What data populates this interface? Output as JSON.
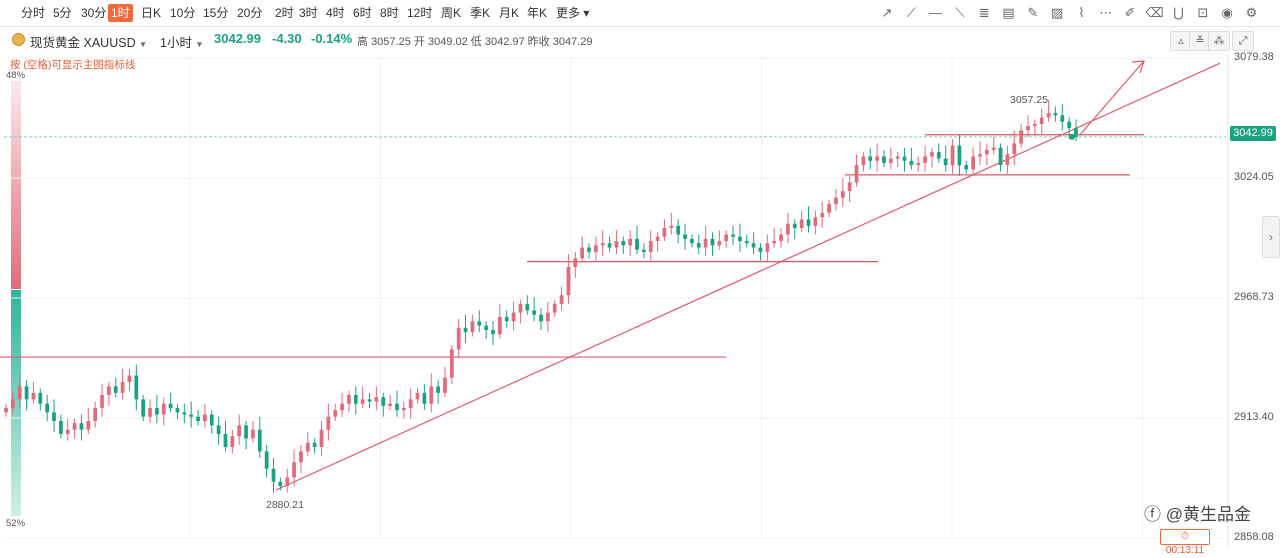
{
  "toolbar": {
    "timeframes": [
      "分时",
      "5分",
      "30分",
      "1时",
      "日K",
      "10分",
      "15分",
      "20分",
      "2时",
      "3时",
      "4时",
      "6时",
      "8时",
      "12时",
      "周K",
      "季K",
      "月K",
      "年K",
      "更多"
    ],
    "active_index": 3,
    "more_icon": "chevron-down-icon",
    "tools": [
      "trend-line-icon",
      "ray-icon",
      "horizontal-line-icon",
      "polyline-icon",
      "fib-icon",
      "channel-icon",
      "pen-icon",
      "image-icon",
      "wave-icon",
      "more-dots-icon",
      "edit-icon",
      "eraser-icon",
      "magnet-icon",
      "lock-icon",
      "eye-icon",
      "settings-icon"
    ]
  },
  "info": {
    "name": "现货黄金",
    "symbol": "XAUUSD",
    "interval": "1小时",
    "last": "3042.99",
    "change": "-4.30",
    "change_pct": "-0.14%",
    "high_label": "高",
    "high": "3057.25",
    "open_label": "开",
    "open": "3049.02",
    "low_label": "低",
    "low": "3042.97",
    "prev_label": "昨收",
    "prev": "3047.29",
    "buttons": [
      "▵",
      "≚",
      "⁂",
      "⤢"
    ]
  },
  "hint": "按 (空格)可显示主图指标线",
  "sentiment": {
    "top_pct": "48%",
    "bottom_pct": "52%",
    "top_color": "#e06b7a",
    "bottom_color": "#2fb59a"
  },
  "colors": {
    "up": "#e06b7a",
    "down": "#1aa282",
    "line": "#e05a6a",
    "last_price": "#1aa282"
  },
  "chart_data": {
    "type": "candlestick",
    "symbol": "XAUUSD",
    "interval": "1H",
    "y_ticks": [
      3079.38,
      3024.05,
      2968.73,
      2913.4,
      2858.08
    ],
    "ylim": [
      2858.08,
      3079.38
    ],
    "last_price": 3042.99,
    "annotations": [
      {
        "type": "high_label",
        "text": "3057.25",
        "value": 3057.25
      },
      {
        "type": "low_label",
        "text": "2880.21",
        "value": 2880.21
      }
    ],
    "horizontal_levels": [
      2941.5,
      2985.5,
      3025.5,
      3044.0
    ],
    "trendline": {
      "from": 2880.21,
      "to": 3077.0
    },
    "closes": [
      2918,
      2922,
      2928,
      2922,
      2925,
      2920,
      2916,
      2912,
      2906,
      2908,
      2911,
      2908,
      2912,
      2918,
      2924,
      2928,
      2925,
      2930,
      2933,
      2922,
      2914,
      2918,
      2915,
      2920,
      2918,
      2916,
      2915,
      2914,
      2912,
      2915,
      2910,
      2906,
      2900,
      2905,
      2910,
      2904,
      2908,
      2898,
      2890,
      2884,
      2882,
      2886,
      2893,
      2898,
      2902,
      2900,
      2908,
      2914,
      2917,
      2920,
      2924,
      2920,
      2922,
      2921,
      2923,
      2919,
      2920,
      2917,
      2918,
      2922,
      2925,
      2920,
      2928,
      2925,
      2932,
      2945,
      2955,
      2953,
      2958,
      2956,
      2954,
      2952,
      2960,
      2958,
      2962,
      2966,
      2963,
      2961,
      2958,
      2962,
      2966,
      2970,
      2983,
      2987,
      2992,
      2990,
      2993,
      2994,
      2992,
      2995,
      2993,
      2996,
      2991,
      2990,
      2995,
      2997,
      3001,
      3002,
      2998,
      2996,
      2994,
      2992,
      2996,
      2993,
      2995,
      2998,
      2997,
      2995,
      2994,
      2992,
      2990,
      2994,
      2995,
      2998,
      3003,
      3001,
      3005,
      3002,
      3006,
      3008,
      3012,
      3015,
      3018,
      3022,
      3030,
      3034,
      3032,
      3034,
      3031,
      3033,
      3034,
      3032,
      3030,
      3031,
      3034,
      3036,
      3033,
      3030,
      3039,
      3030,
      3028,
      3034,
      3035,
      3037,
      3038,
      3030,
      3035,
      3040,
      3046,
      3048,
      3049,
      3052,
      3054,
      3053,
      3050,
      3047,
      3043
    ]
  }
}
